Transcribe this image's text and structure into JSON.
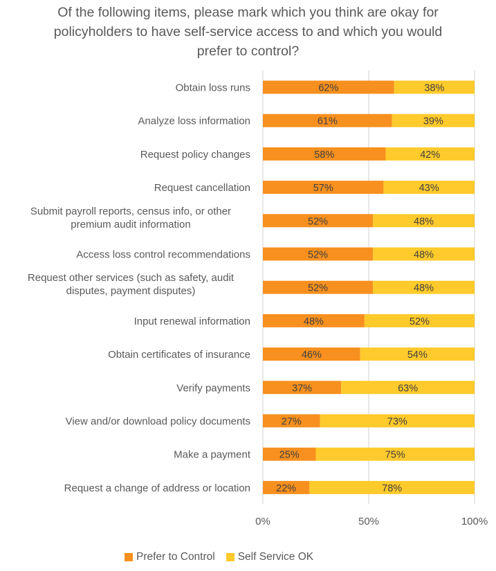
{
  "chart_data": {
    "type": "bar",
    "orientation": "horizontal",
    "stacked": "100%",
    "title": "Of the following items, please mark which you think are okay for policyholders to have self-service access to and which you would prefer to control?",
    "title_lines": [
      "Of the following items, please mark which you think are okay for",
      "policyholders to have self-service access to and which you would",
      "prefer to control?"
    ],
    "categories": [
      [
        "Obtain loss runs"
      ],
      [
        "Analyze loss information"
      ],
      [
        "Request policy changes"
      ],
      [
        "Request cancellation"
      ],
      [
        "Submit payroll reports, census info,  or other",
        "premium audit information"
      ],
      [
        "Access loss control recommendations"
      ],
      [
        "Request other services (such as safety, audit",
        "disputes, payment disputes)"
      ],
      [
        "Input renewal information"
      ],
      [
        "Obtain certificates of insurance"
      ],
      [
        "Verify payments"
      ],
      [
        "View and/or download policy documents"
      ],
      [
        "Make a payment"
      ],
      [
        "Request a change of address or location"
      ]
    ],
    "series": [
      {
        "name": "Prefer to Control",
        "color": "#F7901E",
        "values": [
          62,
          61,
          58,
          57,
          52,
          52,
          52,
          48,
          46,
          37,
          27,
          25,
          22
        ]
      },
      {
        "name": "Self Service OK",
        "color": "#FFCA2B",
        "values": [
          38,
          39,
          42,
          43,
          48,
          48,
          48,
          52,
          54,
          63,
          73,
          75,
          78
        ]
      }
    ],
    "value_suffix": "%",
    "xlim": [
      0,
      100
    ],
    "xticks": [
      0,
      50,
      100
    ],
    "xtick_labels": [
      "0%",
      "50%",
      "100%"
    ],
    "xlabel": "",
    "ylabel": "",
    "grid": true,
    "gridline_color": "#D9D9D9",
    "legend_position": "bottom"
  }
}
